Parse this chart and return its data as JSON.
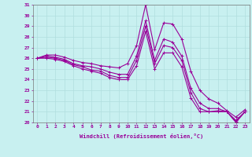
{
  "xlabel": "Windchill (Refroidissement éolien,°C)",
  "background_color": "#c8f0f0",
  "line_color": "#990099",
  "x_values": [
    0,
    1,
    2,
    3,
    4,
    5,
    6,
    7,
    8,
    9,
    10,
    11,
    12,
    13,
    14,
    15,
    16,
    17,
    18,
    19,
    20,
    21,
    22,
    23
  ],
  "series": [
    [
      26.0,
      26.3,
      26.3,
      26.1,
      25.8,
      25.6,
      25.5,
      25.3,
      25.2,
      25.1,
      25.5,
      27.2,
      31.0,
      26.8,
      29.3,
      29.2,
      27.8,
      24.8,
      23.0,
      22.2,
      21.8,
      21.1,
      20.5,
      21.2
    ],
    [
      26.0,
      26.2,
      26.1,
      25.9,
      25.5,
      25.3,
      25.2,
      25.0,
      24.7,
      24.5,
      24.5,
      26.2,
      29.5,
      25.8,
      27.8,
      27.5,
      26.2,
      23.2,
      21.8,
      21.3,
      21.3,
      21.0,
      20.2,
      21.0
    ],
    [
      26.0,
      26.1,
      26.0,
      25.8,
      25.4,
      25.2,
      24.9,
      24.8,
      24.4,
      24.2,
      24.2,
      25.8,
      29.0,
      25.5,
      27.2,
      27.0,
      25.8,
      22.8,
      21.3,
      21.0,
      21.1,
      21.0,
      20.1,
      21.0
    ],
    [
      26.0,
      26.0,
      25.9,
      25.7,
      25.3,
      25.0,
      24.8,
      24.6,
      24.2,
      24.0,
      24.0,
      25.3,
      28.5,
      25.0,
      26.5,
      26.5,
      25.2,
      22.3,
      21.0,
      21.0,
      21.0,
      21.0,
      20.0,
      21.0
    ]
  ],
  "ylim": [
    20,
    31
  ],
  "xlim_min": -0.5,
  "xlim_max": 23.5,
  "yticks": [
    20,
    21,
    22,
    23,
    24,
    25,
    26,
    27,
    28,
    29,
    30,
    31
  ],
  "xticks": [
    0,
    1,
    2,
    3,
    4,
    5,
    6,
    7,
    8,
    9,
    10,
    11,
    12,
    13,
    14,
    15,
    16,
    17,
    18,
    19,
    20,
    21,
    22,
    23
  ],
  "grid_color": "#b0dede",
  "marker": "+",
  "marker_size": 3,
  "marker_edge_width": 0.7,
  "line_width": 0.8,
  "tick_fontsize": 4.5,
  "xlabel_fontsize": 5.0
}
